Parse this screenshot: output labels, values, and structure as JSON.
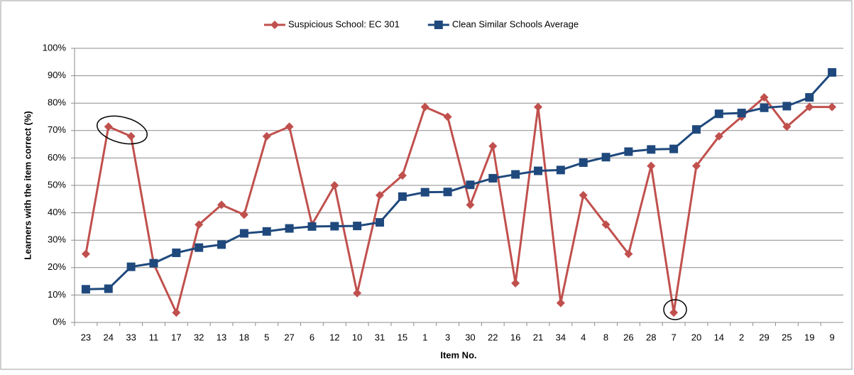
{
  "chart_data": {
    "type": "line",
    "y_label": "Learners with the item correct (%)",
    "x_label": "Item No.",
    "categories": [
      "23",
      "24",
      "33",
      "11",
      "17",
      "32",
      "13",
      "18",
      "5",
      "27",
      "6",
      "12",
      "10",
      "31",
      "15",
      "1",
      "3",
      "30",
      "22",
      "16",
      "21",
      "34",
      "4",
      "8",
      "26",
      "28",
      "7",
      "20",
      "14",
      "2",
      "29",
      "25",
      "19",
      "9"
    ],
    "series": [
      {
        "name": "Suspicious School: EC 301",
        "color": "#c0504d",
        "marker": "diamond",
        "values": [
          25,
          71.4,
          67.9,
          21.4,
          3.6,
          35.7,
          42.9,
          39.3,
          67.9,
          71.4,
          35.7,
          50,
          10.7,
          46.4,
          53.6,
          78.6,
          75,
          42.9,
          64.3,
          14.3,
          78.6,
          7.1,
          46.4,
          35.7,
          25,
          57.1,
          3.6,
          57.1,
          67.9,
          75,
          82.1,
          71.4,
          78.6,
          78.6
        ]
      },
      {
        "name": "Clean Similar Schools Average",
        "color": "#1f497d",
        "marker": "square",
        "values": [
          12.1,
          12.3,
          20.3,
          21.6,
          25.4,
          27.3,
          28.4,
          32.5,
          33.2,
          34.3,
          35,
          35.1,
          35.2,
          36.5,
          45.9,
          47.5,
          47.6,
          50.2,
          52.6,
          54,
          55.3,
          55.6,
          58.3,
          60.3,
          62.3,
          63.1,
          63.3,
          70.4,
          76.1,
          76.4,
          78.3,
          78.9,
          82.1,
          91.2
        ]
      }
    ],
    "ylim": [
      0,
      100
    ],
    "yticks": [
      {
        "value": 0,
        "label": "0%"
      },
      {
        "value": 10,
        "label": "10%"
      },
      {
        "value": 20,
        "label": "20%"
      },
      {
        "value": 30,
        "label": "30%"
      },
      {
        "value": 40,
        "label": "40%"
      },
      {
        "value": 50,
        "label": "50%"
      },
      {
        "value": 60,
        "label": "60%"
      },
      {
        "value": 70,
        "label": "70%"
      },
      {
        "value": 80,
        "label": "80%"
      },
      {
        "value": 90,
        "label": "90%"
      },
      {
        "value": 100,
        "label": "100%"
      }
    ],
    "grid": true,
    "legend": "top"
  }
}
